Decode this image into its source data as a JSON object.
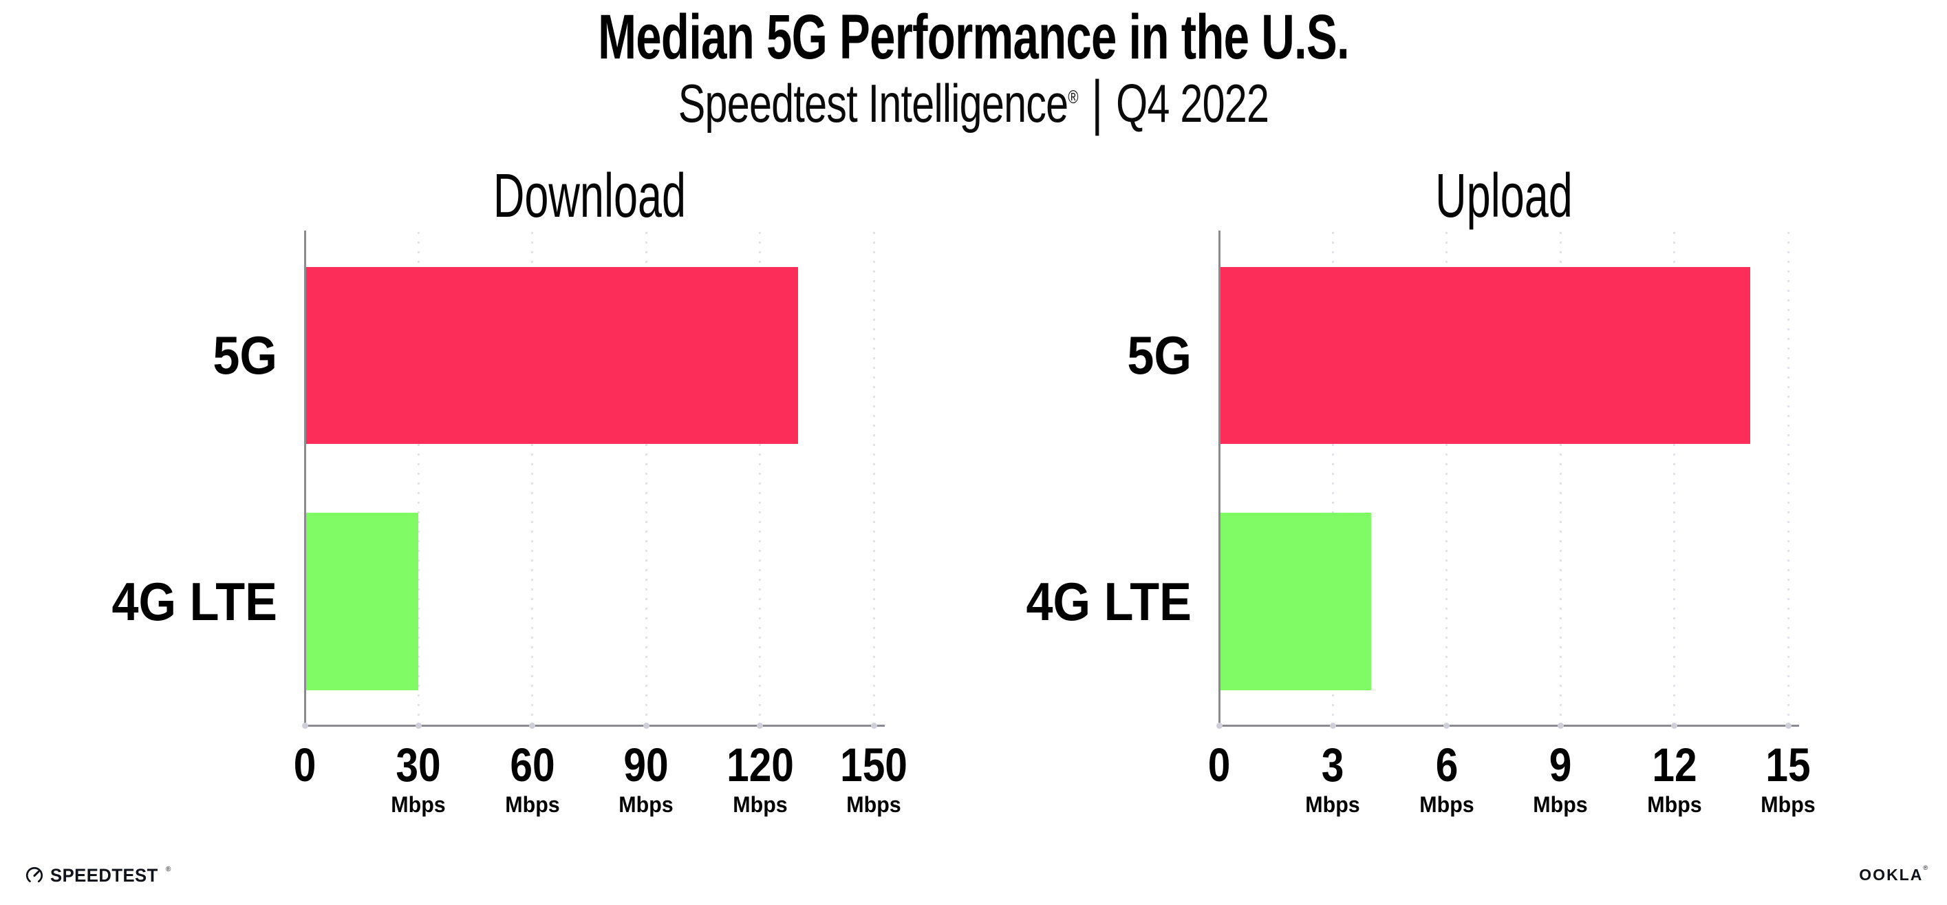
{
  "header": {
    "title": "Median 5G Performance in the U.S.",
    "subtitle_brand": "Speedtest Intelligence",
    "subtitle_reg": "®",
    "subtitle_separator": "|",
    "subtitle_period": "Q4 2022"
  },
  "chart_data": [
    {
      "type": "bar",
      "orientation": "horizontal",
      "title": "Download",
      "categories": [
        "5G",
        "4G LTE"
      ],
      "values": [
        130,
        30
      ],
      "unit": "Mbps",
      "xlim": [
        0,
        150
      ],
      "xticks": [
        0,
        30,
        60,
        90,
        120,
        150
      ],
      "grid": "dotted-vertical",
      "legend": "none",
      "bar_colors": [
        "#fc2d58",
        "#80fb66"
      ]
    },
    {
      "type": "bar",
      "orientation": "horizontal",
      "title": "Upload",
      "categories": [
        "5G",
        "4G LTE"
      ],
      "values": [
        14,
        4
      ],
      "unit": "Mbps",
      "xlim": [
        0,
        15
      ],
      "xticks": [
        0,
        3,
        6,
        9,
        12,
        15
      ],
      "grid": "dotted-vertical",
      "legend": "none",
      "bar_colors": [
        "#fc2d58",
        "#80fb66"
      ]
    }
  ],
  "colors": {
    "bar_5g": "#fc2d58",
    "bar_4g_lte": "#80fb66",
    "axis": "#8a8a90",
    "gridline": "#e2e2ea",
    "text": "#000000"
  },
  "footer": {
    "speedtest_label": "SPEEDTEST",
    "speedtest_reg": "®",
    "ookla_label": "OOKLA",
    "ookla_reg": "®"
  }
}
